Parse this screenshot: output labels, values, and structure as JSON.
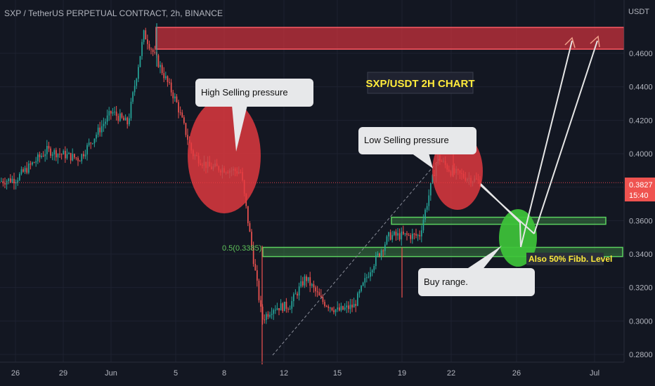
{
  "header": {
    "title": "SXP / TetherUS PERPETUAL CONTRACT, 2h, BINANCE",
    "unit": "USDT"
  },
  "price_tag": {
    "price": "0.3827",
    "countdown": "15:40"
  },
  "colors": {
    "background": "#131722",
    "up": "#26a69a",
    "down": "#ef5350",
    "zone_red": "#c8323c",
    "zone_green": "#4caf50",
    "arrow": "#e6e6e6",
    "title_yellow": "#ffeb3b"
  },
  "chart_data": {
    "type": "line",
    "title": "SXP/USDT 2H CHART",
    "y_ticks": [
      "0.4600",
      "0.4400",
      "0.4200",
      "0.4000",
      "0.3800",
      "0.3600",
      "0.3400",
      "0.3200",
      "0.3000",
      "0.2800"
    ],
    "x_ticks": [
      "26",
      "29",
      "Jun",
      "5",
      "8",
      "12",
      "15",
      "19",
      "22",
      "26",
      "Jul"
    ],
    "ylim": [
      0.272,
      0.484
    ],
    "price_path": {
      "name": "",
      "x": [
        "May 24",
        "May 26",
        "May 28",
        "May 30",
        "Jun 1",
        "Jun 2",
        "Jun 3",
        "Jun 4",
        "Jun 5",
        "Jun 6",
        "Jun 7",
        "Jun 8",
        "Jun 9",
        "Jun 10",
        "Jun 11",
        "Jun 12",
        "Jun 13",
        "Jun 14",
        "Jun 15",
        "Jun 16",
        "Jun 17",
        "Jun 18",
        "Jun 19",
        "Jun 20",
        "Jun 21",
        "Jun 22",
        "Jun 23"
      ],
      "values": [
        0.382,
        0.385,
        0.402,
        0.397,
        0.425,
        0.418,
        0.472,
        0.452,
        0.431,
        0.4,
        0.392,
        0.391,
        0.389,
        0.301,
        0.308,
        0.309,
        0.326,
        0.312,
        0.306,
        0.309,
        0.331,
        0.351,
        0.351,
        0.351,
        0.398,
        0.389,
        0.383
      ]
    },
    "current_price": 0.3827,
    "zones": [
      {
        "label": "",
        "low": 0.4625,
        "high": 0.4755,
        "color": "red"
      },
      {
        "label": "",
        "low": 0.3578,
        "high": 0.362,
        "color": "green"
      },
      {
        "label": "0.5(0.3385)",
        "low": 0.3385,
        "high": 0.344,
        "color": "green"
      }
    ],
    "annotations": [
      {
        "text": "High Selling pressure"
      },
      {
        "text": "Low Selling pressure"
      },
      {
        "text": "Buy range."
      },
      {
        "text": "Also 50% Fibb. Level"
      }
    ]
  }
}
